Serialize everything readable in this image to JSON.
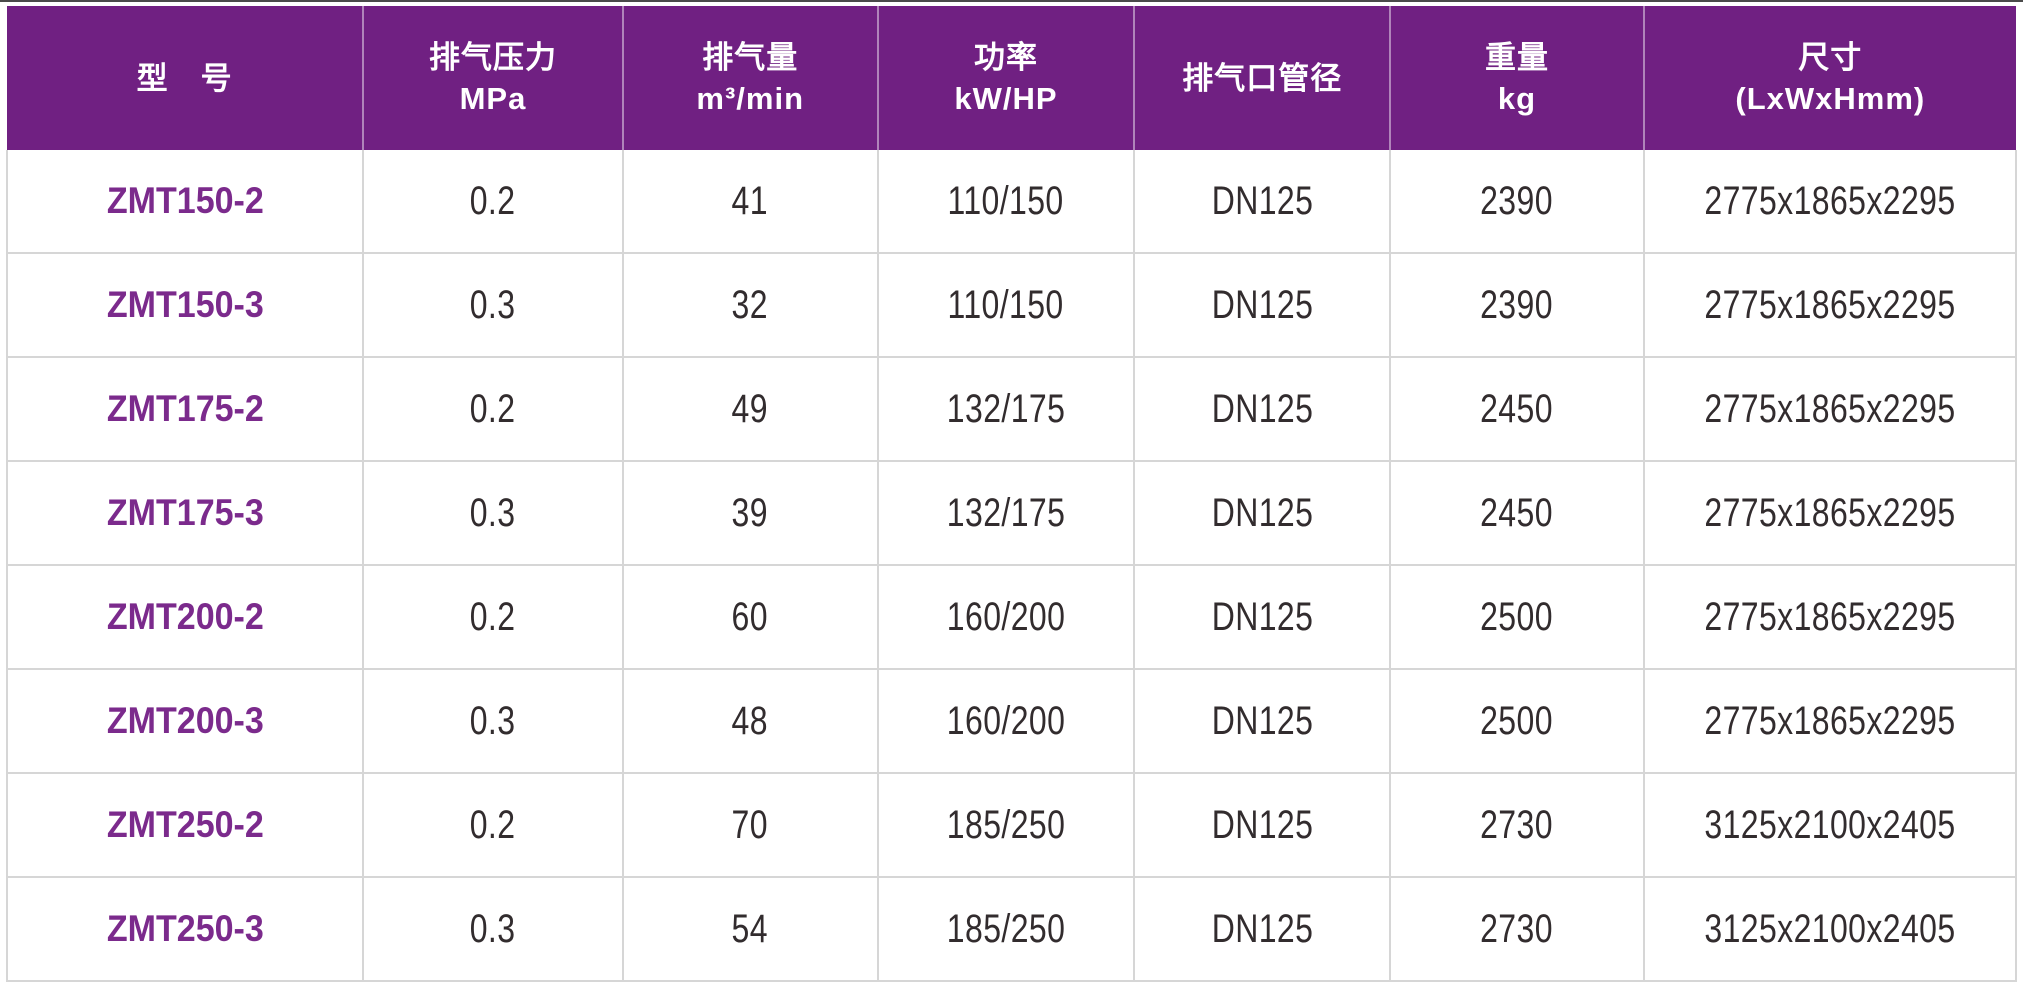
{
  "colors": {
    "header_bg": "#702082",
    "header_text": "#ffffff",
    "model_text": "#7b2a8c",
    "body_text": "#322c2e",
    "grid_line": "#d6d6d6",
    "outer_border": "#c2c2c2",
    "top_line": "#4a4a4a"
  },
  "table": {
    "columns": [
      {
        "id": "model",
        "line1": "型　号",
        "line2": ""
      },
      {
        "id": "pressure",
        "line1": "排气压力",
        "line2": "MPa"
      },
      {
        "id": "displacement",
        "line1": "排气量",
        "line2": "m³/min"
      },
      {
        "id": "power",
        "line1": "功率",
        "line2": "kW/HP"
      },
      {
        "id": "port",
        "line1": "排气口管径",
        "line2": ""
      },
      {
        "id": "weight",
        "line1": "重量",
        "line2": "kg"
      },
      {
        "id": "dimensions",
        "line1": "尺寸",
        "line2": "(LxWxHmm)"
      }
    ],
    "rows": [
      {
        "model": "ZMT150-2",
        "pressure": "0.2",
        "displacement": "41",
        "power": "110/150",
        "port": "DN125",
        "weight": "2390",
        "dimensions": "2775x1865x2295"
      },
      {
        "model": "ZMT150-3",
        "pressure": "0.3",
        "displacement": "32",
        "power": "110/150",
        "port": "DN125",
        "weight": "2390",
        "dimensions": "2775x1865x2295"
      },
      {
        "model": "ZMT175-2",
        "pressure": "0.2",
        "displacement": "49",
        "power": "132/175",
        "port": "DN125",
        "weight": "2450",
        "dimensions": "2775x1865x2295"
      },
      {
        "model": "ZMT175-3",
        "pressure": "0.3",
        "displacement": "39",
        "power": "132/175",
        "port": "DN125",
        "weight": "2450",
        "dimensions": "2775x1865x2295"
      },
      {
        "model": "ZMT200-2",
        "pressure": "0.2",
        "displacement": "60",
        "power": "160/200",
        "port": "DN125",
        "weight": "2500",
        "dimensions": "2775x1865x2295"
      },
      {
        "model": "ZMT200-3",
        "pressure": "0.3",
        "displacement": "48",
        "power": "160/200",
        "port": "DN125",
        "weight": "2500",
        "dimensions": "2775x1865x2295"
      },
      {
        "model": "ZMT250-2",
        "pressure": "0.2",
        "displacement": "70",
        "power": "185/250",
        "port": "DN125",
        "weight": "2730",
        "dimensions": "3125x2100x2405"
      },
      {
        "model": "ZMT250-3",
        "pressure": "0.3",
        "displacement": "54",
        "power": "185/250",
        "port": "DN125",
        "weight": "2730",
        "dimensions": "3125x2100x2405"
      }
    ]
  },
  "chart_data": {
    "type": "table",
    "columns": [
      "型号",
      "排气压力 MPa",
      "排气量 m³/min",
      "功率 kW/HP",
      "排气口管径",
      "重量 kg",
      "尺寸 (LxWxHmm)"
    ],
    "rows": [
      [
        "ZMT150-2",
        "0.2",
        "41",
        "110/150",
        "DN125",
        "2390",
        "2775x1865x2295"
      ],
      [
        "ZMT150-3",
        "0.3",
        "32",
        "110/150",
        "DN125",
        "2390",
        "2775x1865x2295"
      ],
      [
        "ZMT175-2",
        "0.2",
        "49",
        "132/175",
        "DN125",
        "2450",
        "2775x1865x2295"
      ],
      [
        "ZMT175-3",
        "0.3",
        "39",
        "132/175",
        "DN125",
        "2450",
        "2775x1865x2295"
      ],
      [
        "ZMT200-2",
        "0.2",
        "60",
        "160/200",
        "DN125",
        "2500",
        "2775x1865x2295"
      ],
      [
        "ZMT200-3",
        "0.3",
        "48",
        "160/200",
        "DN125",
        "2500",
        "2775x1865x2295"
      ],
      [
        "ZMT250-2",
        "0.2",
        "70",
        "185/250",
        "DN125",
        "2730",
        "3125x2100x2405"
      ],
      [
        "ZMT250-3",
        "0.3",
        "54",
        "185/250",
        "DN125",
        "2730",
        "3125x2100x2405"
      ]
    ]
  }
}
